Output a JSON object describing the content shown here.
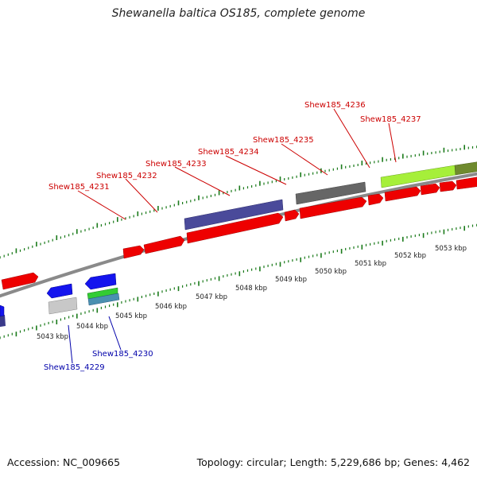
{
  "title": "Shewanella baltica OS185, complete genome",
  "footer": {
    "accession": "Accession: NC_009665",
    "summary": "Topology: circular; Length: 5,229,686 bp; Genes: 4,462"
  },
  "colors": {
    "forward_label": "#cc0000",
    "reverse_label": "#0000aa",
    "tick": "#1a7a1a",
    "backbone": "#8a8a8a"
  },
  "ruler_labels": [
    "5043 kbp",
    "5044 kbp",
    "5045 kbp",
    "5046 kbp",
    "5047 kbp",
    "5048 kbp",
    "5049 kbp",
    "5050 kbp",
    "5051 kbp",
    "5052 kbp",
    "5053 kbp"
  ],
  "gene_labels": {
    "forward": [
      "Shew185_4231",
      "Shew185_4232",
      "Shew185_4233",
      "Shew185_4234",
      "Shew185_4235",
      "Shew185_4236",
      "Shew185_4237"
    ],
    "reverse": [
      "Shew185_4229",
      "Shew185_4230"
    ]
  }
}
